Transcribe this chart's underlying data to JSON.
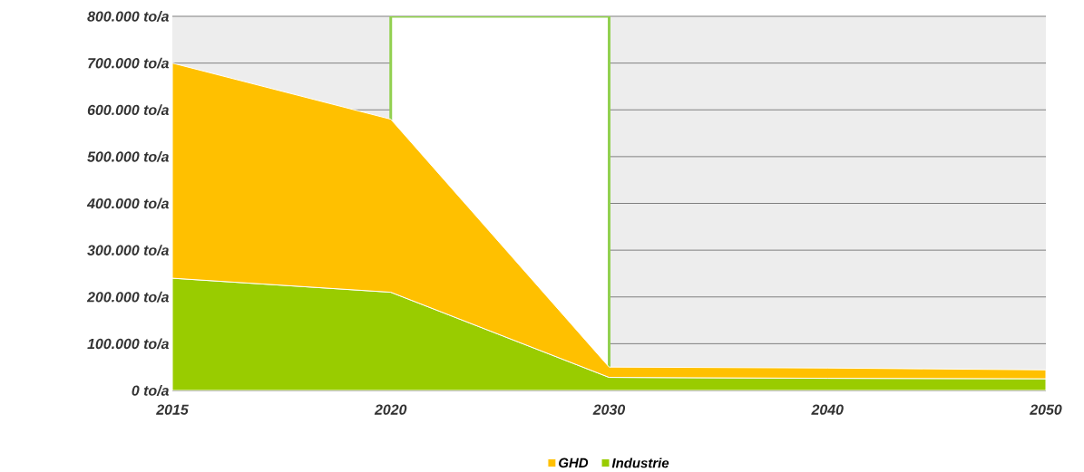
{
  "chart_data": {
    "type": "area",
    "stacked": true,
    "categories": [
      "2015",
      "2020",
      "2030",
      "2040",
      "2050"
    ],
    "series": [
      {
        "name": "Industrie",
        "color": "#99cc00",
        "values": [
          240000,
          210000,
          28000,
          26000,
          25000
        ]
      },
      {
        "name": "GHD",
        "color": "#ffc000",
        "values": [
          460000,
          370000,
          22000,
          22000,
          19000
        ]
      }
    ],
    "ylim": [
      0,
      800000
    ],
    "yticks": [
      {
        "value": 0,
        "label": "0 to/a"
      },
      {
        "value": 100000,
        "label": "100.000 to/a"
      },
      {
        "value": 200000,
        "label": "200.000 to/a"
      },
      {
        "value": 300000,
        "label": "300.000 to/a"
      },
      {
        "value": 400000,
        "label": "400.000 to/a"
      },
      {
        "value": 500000,
        "label": "500.000 to/a"
      },
      {
        "value": 600000,
        "label": "600.000 to/a"
      },
      {
        "value": 700000,
        "label": "700.000 to/a"
      },
      {
        "value": 800000,
        "label": "800.000 to/a"
      }
    ],
    "bands": [
      {
        "axis": "x",
        "from": "2020",
        "to": "2030",
        "color": "#ffffff"
      }
    ],
    "grid": "y",
    "legend": "bottom"
  }
}
